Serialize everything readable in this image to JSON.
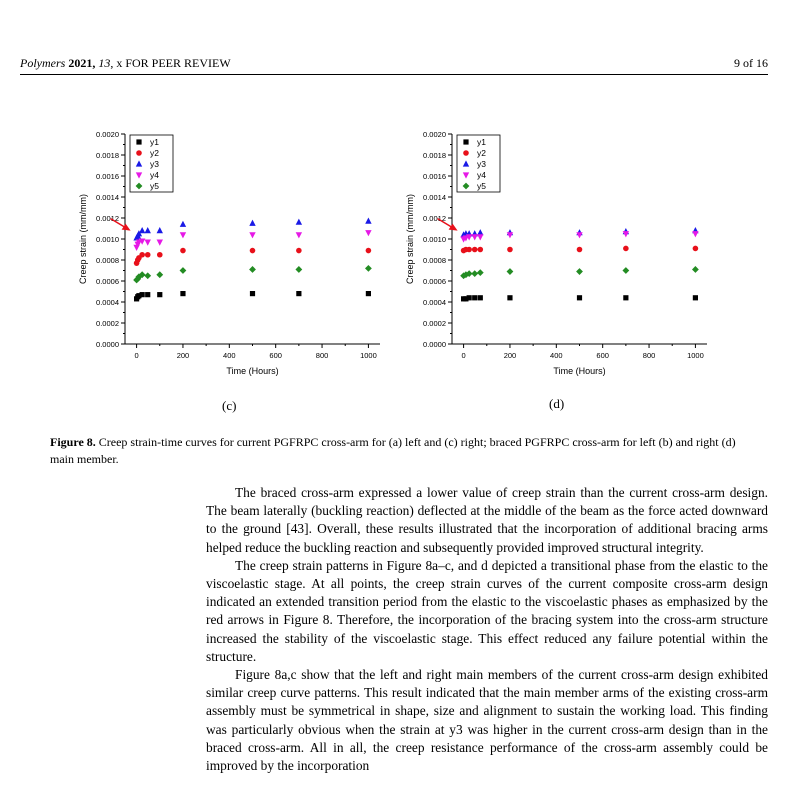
{
  "header": {
    "journal": "Polymers",
    "year": "2021,",
    "volume": "13",
    "rest": ", x FOR PEER REVIEW",
    "page": "9 of 16"
  },
  "panels": {
    "c": "(c)",
    "d": "(d)"
  },
  "caption": {
    "label": "Figure 8.",
    "text": " Creep strain-time curves for current PGFRPC cross-arm for (a) left and (c) right; braced PGFRPC cross-arm for left (b) and right (d) main member."
  },
  "paragraphs": [
    "The braced cross-arm expressed a lower value of creep strain than the current cross-arm design. The beam laterally (buckling reaction) deflected at the middle of the beam as the force acted downward to the ground [43]. Overall, these results illustrated that the incorporation of additional bracing arms helped reduce the buckling reaction and subsequently provided improved structural integrity.",
    "The creep strain patterns in Figure 8a–c, and d depicted a transitional phase from the elastic to the viscoelastic stage. At all points, the creep strain curves of the current composite cross-arm design indicated an extended transition period from the elastic to the viscoelastic phases as emphasized by the red arrows in Figure 8. Therefore, the incorporation of the bracing system into the cross-arm structure increased the stability of the viscoelastic stage. This effect reduced any failure potential within the structure.",
    "Figure 8a,c show that the left and right main members of the current cross-arm design exhibited similar creep curve patterns. This result indicated that the main member arms of the existing cross-arm assembly must be symmetrical in shape, size and alignment to sustain the working load. This finding was particularly obvious when the strain at y3 was higher in the current cross-arm design than in the braced cross-arm. All in all, the creep resistance performance of the cross-arm assembly could be improved by the incorporation"
  ],
  "chart_data": [
    {
      "type": "scatter",
      "panel": "(c)",
      "xlabel": "Time (Hours)",
      "ylabel": "Creep strain (mm/mm)",
      "xlim": [
        -50,
        1050
      ],
      "ylim": [
        0,
        0.002
      ],
      "xticks": [
        0,
        200,
        400,
        600,
        800,
        1000
      ],
      "yticks": [
        "0.0000",
        "0.0002",
        "0.0004",
        "0.0006",
        "0.0008",
        "0.0010",
        "0.0012",
        "0.0014",
        "0.0016",
        "0.0018",
        "0.0020"
      ],
      "legend": "top-left",
      "x": [
        0,
        5,
        10,
        24,
        48,
        100,
        200,
        500,
        700,
        1000
      ],
      "series": [
        {
          "name": "y1",
          "marker": "square",
          "color": "#000000",
          "values": [
            0.00043,
            0.00045,
            0.00046,
            0.00047,
            0.00047,
            0.00047,
            0.00048,
            0.00048,
            0.00048,
            0.00048
          ]
        },
        {
          "name": "y2",
          "marker": "circle",
          "color": "#e8101a",
          "values": [
            0.00077,
            0.0008,
            0.00082,
            0.00085,
            0.00085,
            0.00085,
            0.00089,
            0.00089,
            0.00089,
            0.00089
          ]
        },
        {
          "name": "y3",
          "marker": "triangle-up",
          "color": "#1a1ae6",
          "values": [
            0.00101,
            0.00103,
            0.00105,
            0.00108,
            0.00108,
            0.00108,
            0.00114,
            0.00115,
            0.00116,
            0.00117
          ]
        },
        {
          "name": "y4",
          "marker": "triangle-down",
          "color": "#e619e6",
          "values": [
            0.00092,
            0.00095,
            0.00097,
            0.00098,
            0.00097,
            0.00097,
            0.00104,
            0.00104,
            0.00104,
            0.00106
          ]
        },
        {
          "name": "y5",
          "marker": "diamond",
          "color": "#238c23",
          "values": [
            0.00061,
            0.00062,
            0.00064,
            0.00066,
            0.00065,
            0.00066,
            0.0007,
            0.00071,
            0.00071,
            0.00072
          ]
        }
      ]
    },
    {
      "type": "scatter",
      "panel": "(d)",
      "xlabel": "Time (Hours)",
      "ylabel": "Creep strain (mm/mm)",
      "xlim": [
        -50,
        1050
      ],
      "ylim": [
        0,
        0.002
      ],
      "xticks": [
        0,
        200,
        400,
        600,
        800,
        1000
      ],
      "yticks": [
        "0.0000",
        "0.0002",
        "0.0004",
        "0.0006",
        "0.0008",
        "0.0010",
        "0.0012",
        "0.0014",
        "0.0016",
        "0.0018",
        "0.0020"
      ],
      "legend": "top-left",
      "x": [
        0,
        10,
        24,
        48,
        72,
        200,
        500,
        700,
        1000
      ],
      "series": [
        {
          "name": "y1",
          "marker": "square",
          "color": "#000000",
          "values": [
            0.00043,
            0.00043,
            0.00044,
            0.00044,
            0.00044,
            0.00044,
            0.00044,
            0.00044,
            0.00044
          ]
        },
        {
          "name": "y2",
          "marker": "circle",
          "color": "#e8101a",
          "values": [
            0.00089,
            0.0009,
            0.0009,
            0.0009,
            0.0009,
            0.0009,
            0.0009,
            0.00091,
            0.00091
          ]
        },
        {
          "name": "y3",
          "marker": "triangle-up",
          "color": "#1a1ae6",
          "values": [
            0.00104,
            0.00105,
            0.00105,
            0.00105,
            0.00106,
            0.00106,
            0.00106,
            0.00107,
            0.00108
          ]
        },
        {
          "name": "y4",
          "marker": "triangle-down",
          "color": "#e619e6",
          "values": [
            0.001,
            0.00101,
            0.00102,
            0.00102,
            0.00102,
            0.00104,
            0.00104,
            0.00105,
            0.00105
          ]
        },
        {
          "name": "y5",
          "marker": "diamond",
          "color": "#238c23",
          "values": [
            0.00065,
            0.00066,
            0.00067,
            0.00067,
            0.00068,
            0.00069,
            0.00069,
            0.0007,
            0.00071
          ]
        }
      ]
    }
  ]
}
